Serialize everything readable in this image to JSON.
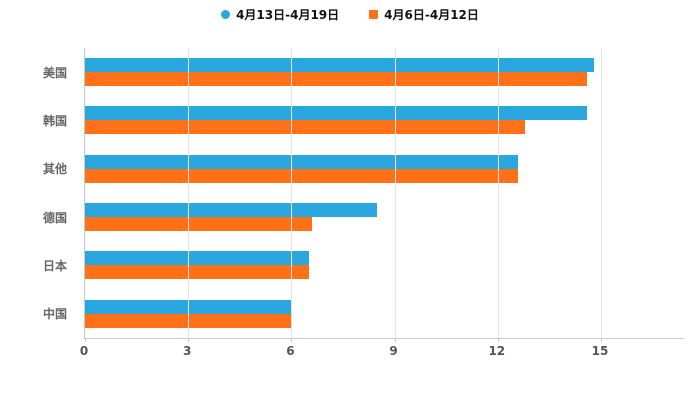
{
  "chart_data": {
    "type": "bar",
    "orientation": "horizontal",
    "title": "",
    "categories": [
      "美国",
      "韩国",
      "其他",
      "德国",
      "日本",
      "中国"
    ],
    "series": [
      {
        "name": "4月13日-4月19日",
        "color": "#2BA7DF",
        "marker": "circle",
        "values": [
          14.8,
          14.6,
          12.6,
          8.5,
          6.5,
          6.0
        ]
      },
      {
        "name": "4月6日-4月12日",
        "color": "#FF7119",
        "marker": "square",
        "values": [
          14.6,
          12.8,
          12.6,
          6.6,
          6.5,
          6.0
        ]
      }
    ],
    "xticks": [
      0,
      3,
      6,
      9,
      12,
      15
    ],
    "xlim": [
      0,
      15
    ],
    "legend_position": "top",
    "grid": true,
    "axis_color": "#c9c9c9",
    "gridline_color": "#e4e4e4",
    "label_color": "#666666"
  }
}
